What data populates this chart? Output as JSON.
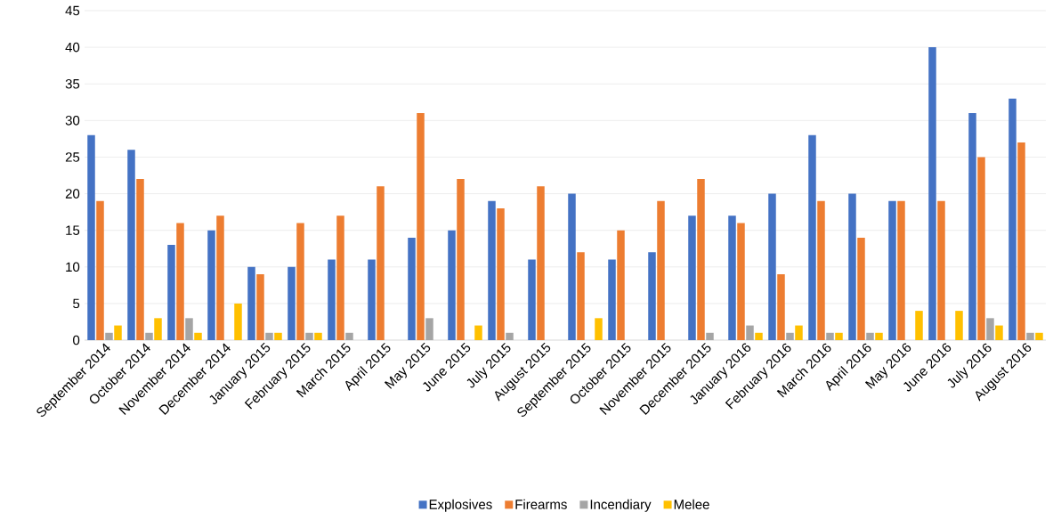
{
  "chart_data": {
    "type": "bar",
    "categories": [
      "September 2014",
      "October 2014",
      "November 2014",
      "December 2014",
      "January 2015",
      "February 2015",
      "March 2015",
      "April 2015",
      "May 2015",
      "June 2015",
      "July 2015",
      "August 2015",
      "September 2015",
      "October 2015",
      "November 2015",
      "December 2015",
      "January 2016",
      "February 2016",
      "March 2016",
      "April 2016",
      "May 2016",
      "June 2016",
      "July 2016",
      "August 2016"
    ],
    "series": [
      {
        "name": "Explosives",
        "color": "#4472c4",
        "values": [
          28,
          26,
          13,
          15,
          10,
          10,
          11,
          11,
          14,
          15,
          19,
          11,
          20,
          11,
          12,
          17,
          17,
          20,
          28,
          20,
          19,
          40,
          31,
          33
        ]
      },
      {
        "name": "Firearms",
        "color": "#ed7d31",
        "values": [
          19,
          22,
          16,
          17,
          9,
          16,
          17,
          21,
          31,
          22,
          18,
          21,
          12,
          15,
          19,
          22,
          16,
          9,
          19,
          14,
          19,
          19,
          25,
          27
        ]
      },
      {
        "name": "Incendiary",
        "color": "#a5a5a5",
        "values": [
          1,
          1,
          3,
          0,
          1,
          1,
          1,
          0,
          3,
          0,
          1,
          0,
          0,
          0,
          0,
          1,
          2,
          1,
          1,
          1,
          0,
          0,
          3,
          1
        ]
      },
      {
        "name": "Melee",
        "color": "#ffc000",
        "values": [
          2,
          3,
          1,
          5,
          1,
          1,
          0,
          0,
          0,
          2,
          0,
          0,
          3,
          0,
          0,
          0,
          1,
          2,
          1,
          1,
          4,
          4,
          2,
          1
        ]
      }
    ],
    "ylim": [
      0,
      45
    ],
    "yticks": [
      0,
      5,
      10,
      15,
      20,
      25,
      30,
      35,
      40,
      45
    ],
    "grid": "y",
    "legend": "bottom"
  }
}
